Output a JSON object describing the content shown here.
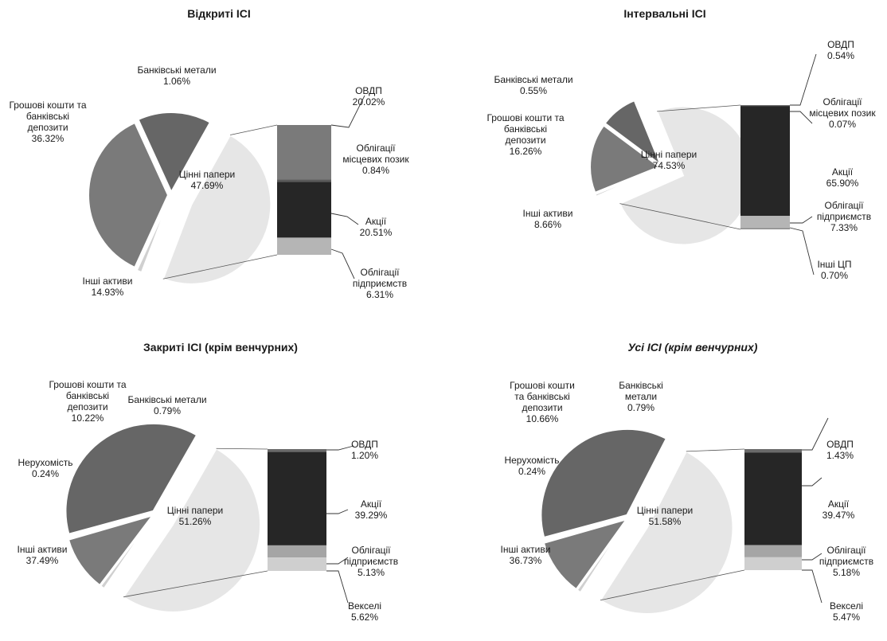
{
  "chart_data": [
    {
      "type": "pie",
      "title": "Відкриті ІСІ",
      "title_italic": false,
      "slices": [
        {
          "label": [
            "Цінні папери"
          ],
          "value": 47.69,
          "display": "47.69%",
          "color": "#e6e6e6",
          "exploded": true
        },
        {
          "label": [
            "Інші активи"
          ],
          "value": 14.93,
          "display": "14.93%",
          "color": "#666666"
        },
        {
          "label": [
            "Грошові кошти та",
            "банківські",
            "депозити"
          ],
          "value": 36.32,
          "display": "36.32%",
          "color": "#7a7a7a"
        },
        {
          "label": [
            "Банківські метали"
          ],
          "value": 1.06,
          "display": "1.06%",
          "color": "#d0d0d0"
        }
      ],
      "breakdown": [
        {
          "label": [
            "ОВДП"
          ],
          "value": 20.02,
          "display": "20.02%",
          "color": "#7a7a7a"
        },
        {
          "label": [
            "Облігації",
            "місцевих позик"
          ],
          "value": 0.84,
          "display": "0.84%",
          "color": "#5a5a5a"
        },
        {
          "label": [
            "Акції"
          ],
          "value": 20.51,
          "display": "20.51%",
          "color": "#262626"
        },
        {
          "label": [
            "Облігації",
            "підприємств"
          ],
          "value": 6.31,
          "display": "6.31%",
          "color": "#b5b5b5"
        }
      ]
    },
    {
      "type": "pie",
      "title": "Інтервальні ІСІ",
      "title_italic": false,
      "slices": [
        {
          "label": [
            "Цінні папери"
          ],
          "value": 74.53,
          "display": "74.53%",
          "color": "#e6e6e6",
          "exploded": true
        },
        {
          "label": [
            "Інші активи"
          ],
          "value": 8.66,
          "display": "8.66%",
          "color": "#666666"
        },
        {
          "label": [
            "Грошові кошти та",
            "банківські",
            "депозити"
          ],
          "value": 16.26,
          "display": "16.26%",
          "color": "#7a7a7a"
        },
        {
          "label": [
            "Банківські метали"
          ],
          "value": 0.55,
          "display": "0.55%",
          "color": "#d0d0d0"
        }
      ],
      "breakdown": [
        {
          "label": [
            "ОВДП"
          ],
          "value": 0.54,
          "display": "0.54%",
          "color": "#6a6a6a"
        },
        {
          "label": [
            "Облігації",
            "місцевих позик"
          ],
          "value": 0.07,
          "display": "0.07%",
          "color": "#4a4a4a"
        },
        {
          "label": [
            "Акції"
          ],
          "value": 65.9,
          "display": "65.90%",
          "color": "#262626"
        },
        {
          "label": [
            "Облігації",
            "підприємств"
          ],
          "value": 7.33,
          "display": "7.33%",
          "color": "#b5b5b5"
        },
        {
          "label": [
            "Інші ЦП"
          ],
          "value": 0.7,
          "display": "0.70%",
          "color": "#8a8a8a"
        }
      ]
    },
    {
      "type": "pie",
      "title": "Закриті ІСІ (крім венчурних)",
      "title_italic": false,
      "slices": [
        {
          "label": [
            "Цінні папери"
          ],
          "value": 51.26,
          "display": "51.26%",
          "color": "#e6e6e6",
          "exploded": true
        },
        {
          "label": [
            "Інші активи"
          ],
          "value": 37.49,
          "display": "37.49%",
          "color": "#666666"
        },
        {
          "label": [
            "Нерухомість"
          ],
          "value": 0.24,
          "display": "0.24%",
          "color": "#a5a5a5"
        },
        {
          "label": [
            "Грошові кошти та",
            "банківські",
            "депозити"
          ],
          "value": 10.22,
          "display": "10.22%",
          "color": "#7a7a7a"
        },
        {
          "label": [
            "Банківські метали"
          ],
          "value": 0.79,
          "display": "0.79%",
          "color": "#d0d0d0"
        }
      ],
      "breakdown": [
        {
          "label": [
            "ОВДП"
          ],
          "value": 1.2,
          "display": "1.20%",
          "color": "#6a6a6a"
        },
        {
          "label": [
            "Акції"
          ],
          "value": 39.29,
          "display": "39.29%",
          "color": "#262626"
        },
        {
          "label": [
            "Облігації",
            "підприємств"
          ],
          "value": 5.13,
          "display": "5.13%",
          "color": "#a5a5a5"
        },
        {
          "label": [
            "Векселі"
          ],
          "value": 5.62,
          "display": "5.62%",
          "color": "#cfcfcf"
        }
      ]
    },
    {
      "type": "pie",
      "title": "Усі ІСІ (крім венчурних)",
      "title_italic": true,
      "slices": [
        {
          "label": [
            "Цінні папери"
          ],
          "value": 51.58,
          "display": "51.58%",
          "color": "#e6e6e6",
          "exploded": true
        },
        {
          "label": [
            "Інші активи"
          ],
          "value": 36.73,
          "display": "36.73%",
          "color": "#666666"
        },
        {
          "label": [
            "Нерухомість"
          ],
          "value": 0.24,
          "display": "0.24%",
          "color": "#a5a5a5"
        },
        {
          "label": [
            "Грошові кошти",
            "та банківські",
            "депозити"
          ],
          "value": 10.66,
          "display": "10.66%",
          "color": "#7a7a7a"
        },
        {
          "label": [
            "Банківські",
            "метали"
          ],
          "value": 0.79,
          "display": "0.79%",
          "color": "#d0d0d0"
        }
      ],
      "breakdown": [
        {
          "label": [
            "ОВДП"
          ],
          "value": 1.43,
          "display": "1.43%",
          "color": "#6a6a6a"
        },
        {
          "label": [
            "Акції"
          ],
          "value": 39.47,
          "display": "39.47%",
          "color": "#262626"
        },
        {
          "label": [
            "Облігації",
            "підприємств"
          ],
          "value": 5.18,
          "display": "5.18%",
          "color": "#a5a5a5"
        },
        {
          "label": [
            "Векселі"
          ],
          "value": 5.47,
          "display": "5.47%",
          "color": "#cfcfcf"
        }
      ]
    }
  ]
}
